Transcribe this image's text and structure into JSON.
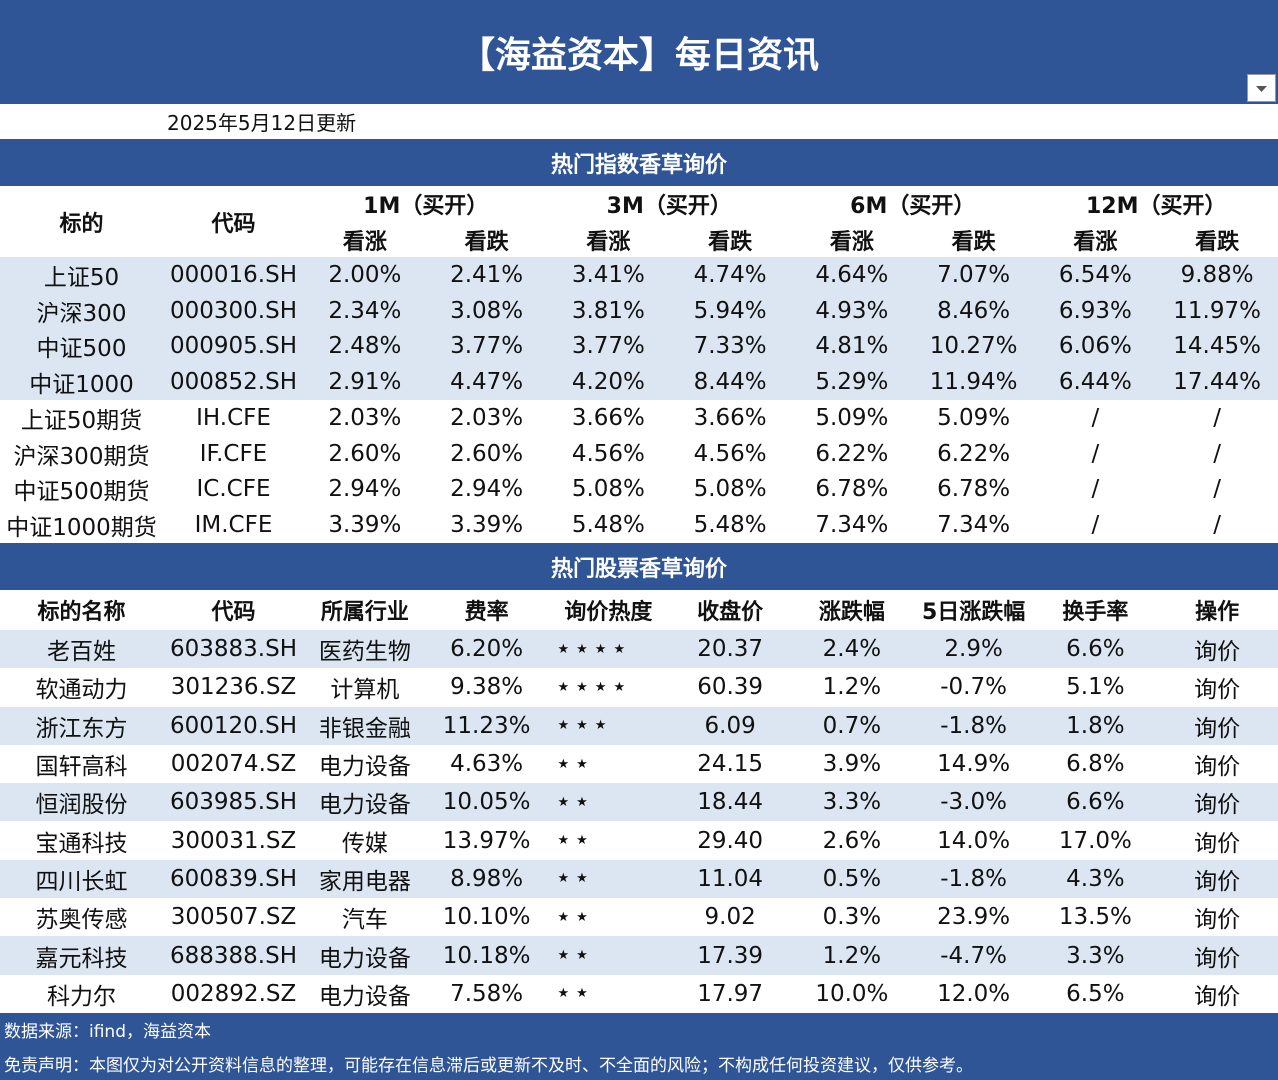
{
  "header": {
    "title": "【海益资本】每日资讯",
    "update": "2025年5月12日更新"
  },
  "index_table": {
    "title": "热门指数香草询价",
    "columns": [
      "标的",
      "代码"
    ],
    "tenors": [
      "1M（买开）",
      "3M（买开）",
      "6M（买开）",
      "12M（买开）"
    ],
    "subheaders": [
      "看涨",
      "看跌",
      "看涨",
      "看跌",
      "看涨",
      "看跌",
      "看涨",
      "看跌"
    ],
    "rows": [
      [
        "上证50",
        "000016.SH",
        "2.00%",
        "2.41%",
        "3.41%",
        "4.74%",
        "4.64%",
        "7.07%",
        "6.54%",
        "9.88%"
      ],
      [
        "沪深300",
        "000300.SH",
        "2.34%",
        "3.08%",
        "3.81%",
        "5.94%",
        "4.93%",
        "8.46%",
        "6.93%",
        "11.97%"
      ],
      [
        "中证500",
        "000905.SH",
        "2.48%",
        "3.77%",
        "3.77%",
        "7.33%",
        "4.81%",
        "10.27%",
        "6.06%",
        "14.45%"
      ],
      [
        "中证1000",
        "000852.SH",
        "2.91%",
        "4.47%",
        "4.20%",
        "8.44%",
        "5.29%",
        "11.94%",
        "6.44%",
        "17.44%"
      ],
      [
        "上证50期货",
        "IH.CFE",
        "2.03%",
        "2.03%",
        "3.66%",
        "3.66%",
        "5.09%",
        "5.09%",
        "/",
        "/"
      ],
      [
        "沪深300期货",
        "IF.CFE",
        "2.60%",
        "2.60%",
        "4.56%",
        "4.56%",
        "6.22%",
        "6.22%",
        "/",
        "/"
      ],
      [
        "中证500期货",
        "IC.CFE",
        "2.94%",
        "2.94%",
        "5.08%",
        "5.08%",
        "6.78%",
        "6.78%",
        "/",
        "/"
      ],
      [
        "中证1000期货",
        "IM.CFE",
        "3.39%",
        "3.39%",
        "5.48%",
        "5.48%",
        "7.34%",
        "7.34%",
        "/",
        "/"
      ]
    ]
  },
  "stock_table": {
    "title": "热门股票香草询价",
    "columns": [
      "标的名称",
      "代码",
      "所属行业",
      "费率",
      "询价热度",
      "收盘价",
      "涨跌幅",
      "5日涨跌幅",
      "换手率",
      "操作"
    ],
    "rows": [
      [
        "老百姓",
        "603883.SH",
        "医药生物",
        "6.20%",
        "★★★★",
        "20.37",
        "2.4%",
        "2.9%",
        "6.6%",
        "询价"
      ],
      [
        "软通动力",
        "301236.SZ",
        "计算机",
        "9.38%",
        "★★★★",
        "60.39",
        "1.2%",
        "-0.7%",
        "5.1%",
        "询价"
      ],
      [
        "浙江东方",
        "600120.SH",
        "非银金融",
        "11.23%",
        "★★★",
        "6.09",
        "0.7%",
        "-1.8%",
        "1.8%",
        "询价"
      ],
      [
        "国轩高科",
        "002074.SZ",
        "电力设备",
        "4.63%",
        "★★",
        "24.15",
        "3.9%",
        "14.9%",
        "6.8%",
        "询价"
      ],
      [
        "恒润股份",
        "603985.SH",
        "电力设备",
        "10.05%",
        "★★",
        "18.44",
        "3.3%",
        "-3.0%",
        "6.6%",
        "询价"
      ],
      [
        "宝通科技",
        "300031.SZ",
        "传媒",
        "13.97%",
        "★★",
        "29.40",
        "2.6%",
        "14.0%",
        "17.0%",
        "询价"
      ],
      [
        "四川长虹",
        "600839.SH",
        "家用电器",
        "8.98%",
        "★★",
        "11.04",
        "0.5%",
        "-1.8%",
        "4.3%",
        "询价"
      ],
      [
        "苏奥传感",
        "300507.SZ",
        "汽车",
        "10.10%",
        "★★",
        "9.02",
        "0.3%",
        "23.9%",
        "13.5%",
        "询价"
      ],
      [
        "嘉元科技",
        "688388.SH",
        "电力设备",
        "10.18%",
        "★★",
        "17.39",
        "1.2%",
        "-4.7%",
        "3.3%",
        "询价"
      ],
      [
        "科力尔",
        "002892.SZ",
        "电力设备",
        "7.58%",
        "★★",
        "17.97",
        "10.0%",
        "12.0%",
        "6.5%",
        "询价"
      ]
    ]
  },
  "footer": {
    "source": "数据来源：ifind，海益资本",
    "disclaimer": "免责声明：本图仅为对公开资料信息的整理，可能存在信息滞后或更新不及时、不全面的风险；不构成任何投资建议，仅供参考。"
  }
}
